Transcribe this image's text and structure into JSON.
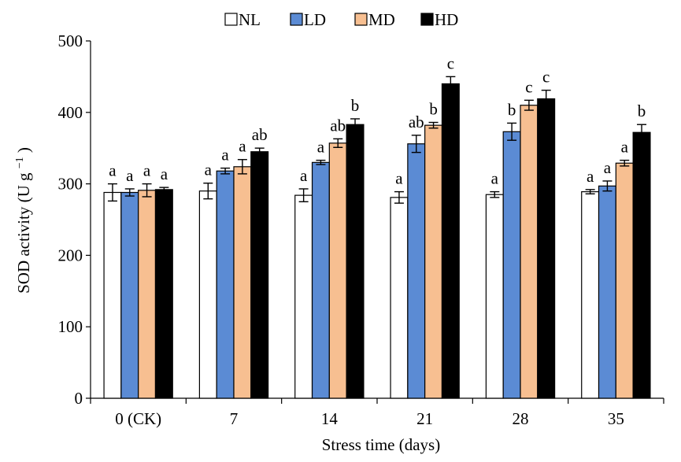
{
  "chart_data": {
    "type": "bar",
    "xlabel": "Stress time (days)",
    "ylabel_main": "SOD activity (U g",
    "ylabel_sup": "−1",
    "ylabel_close": ")",
    "ylim": [
      0,
      500
    ],
    "yticks": [
      0,
      100,
      200,
      300,
      400,
      500
    ],
    "grid": false,
    "legend_position": "top-center",
    "categories": [
      "0 (CK)",
      "7",
      "14",
      "21",
      "28",
      "35"
    ],
    "series": [
      {
        "name": "NL",
        "color": "#ffffff",
        "values": [
          288,
          290,
          284,
          281,
          285,
          289
        ],
        "errors": [
          12,
          11,
          9,
          8,
          4,
          3
        ],
        "letters": [
          "a",
          "a",
          "a",
          "a",
          "a",
          "a"
        ]
      },
      {
        "name": "LD",
        "color": "#5b8bd4",
        "values": [
          288,
          318,
          330,
          356,
          373,
          297
        ],
        "errors": [
          5,
          4,
          3,
          12,
          12,
          7
        ],
        "letters": [
          "a",
          "a",
          "a",
          "ab",
          "b",
          "a"
        ]
      },
      {
        "name": "MD",
        "color": "#f7bf91",
        "values": [
          291,
          324,
          357,
          382,
          410,
          329
        ],
        "errors": [
          9,
          10,
          6,
          4,
          7,
          4
        ],
        "letters": [
          "a",
          "a",
          "ab",
          "b",
          "c",
          "a"
        ]
      },
      {
        "name": "HD",
        "color": "#000000",
        "values": [
          292,
          345,
          383,
          440,
          419,
          372
        ],
        "errors": [
          3,
          5,
          8,
          10,
          12,
          11
        ],
        "letters": [
          "a",
          "ab",
          "b",
          "c",
          "c",
          "b"
        ]
      }
    ]
  }
}
